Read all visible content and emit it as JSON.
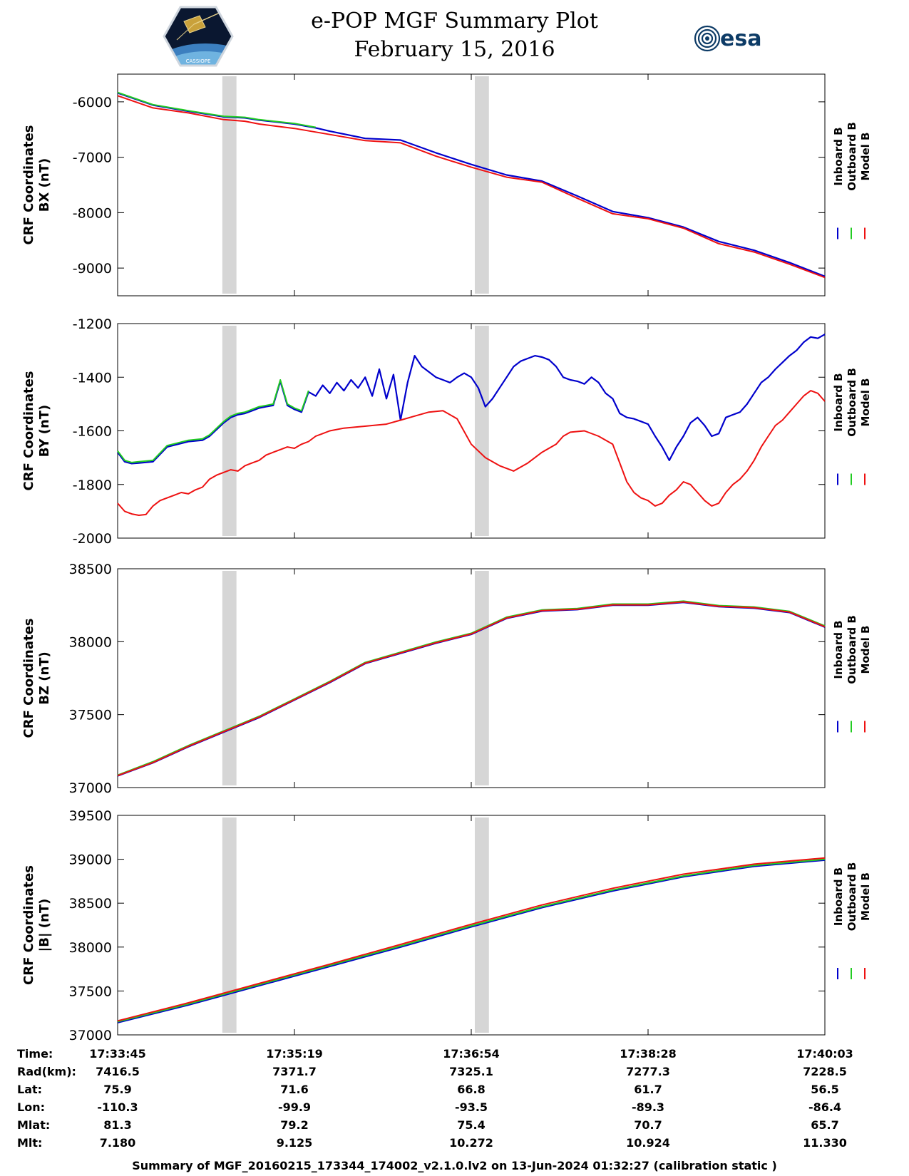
{
  "header": {
    "title": "e-POP MGF Summary Plot",
    "date": "February 15, 2016",
    "esa_logo_text": "esa",
    "cassiope_logo_text": "CASSIOPE"
  },
  "colors": {
    "inboard": "#0000cc",
    "outboard": "#22cc22",
    "model": "#ee1111",
    "shade": "#d6d6d6"
  },
  "legend": [
    "Inboard B",
    "Outboard B",
    "Model B"
  ],
  "chart_data": [
    {
      "type": "line",
      "ylabel_line1": "CRF Coordinates",
      "ylabel_line2": "BX (nT)",
      "ylim": [
        -9500,
        -5500
      ],
      "yticks": [
        -6000,
        -7000,
        -8000,
        -9000
      ],
      "xlim": [
        0,
        100
      ],
      "shaded_x": [
        [
          14.8,
          16.8
        ],
        [
          50.5,
          52.5
        ]
      ],
      "series": [
        {
          "name": "Inboard B",
          "x": [
            0,
            5,
            10,
            15,
            18,
            20,
            25,
            28,
            30,
            35,
            40,
            45,
            50,
            55,
            60,
            65,
            70,
            75,
            80,
            85,
            90,
            95,
            100
          ],
          "y": [
            -5840,
            -6060,
            -6170,
            -6270,
            -6290,
            -6330,
            -6400,
            -6470,
            -6530,
            -6660,
            -6690,
            -6920,
            -7130,
            -7320,
            -7430,
            -7700,
            -7980,
            -8090,
            -8260,
            -8520,
            -8680,
            -8900,
            -9150
          ]
        },
        {
          "name": "Outboard B",
          "x": [
            0,
            5,
            10,
            15,
            18,
            20,
            25,
            28
          ],
          "y": [
            -5830,
            -6050,
            -6160,
            -6260,
            -6280,
            -6320,
            -6390,
            -6460
          ]
        },
        {
          "name": "Model B",
          "x": [
            0,
            5,
            10,
            15,
            18,
            20,
            25,
            30,
            35,
            40,
            45,
            50,
            55,
            60,
            65,
            70,
            75,
            80,
            85,
            90,
            95,
            100
          ],
          "y": [
            -5890,
            -6110,
            -6200,
            -6320,
            -6350,
            -6400,
            -6480,
            -6590,
            -6700,
            -6740,
            -6980,
            -7180,
            -7360,
            -7450,
            -7740,
            -8020,
            -8110,
            -8280,
            -8560,
            -8710,
            -8930,
            -9170
          ]
        }
      ]
    },
    {
      "type": "line",
      "ylabel_line1": "CRF Coordinates",
      "ylabel_line2": "BY (nT)",
      "ylim": [
        -2000,
        -1200
      ],
      "yticks": [
        -1200,
        -1400,
        -1600,
        -1800,
        -2000
      ],
      "xlim": [
        0,
        100
      ],
      "shaded_x": [
        [
          14.8,
          16.8
        ],
        [
          50.5,
          52.5
        ]
      ],
      "series": [
        {
          "name": "Inboard B",
          "x": [
            0,
            1,
            2,
            3,
            5,
            7,
            10,
            12,
            13,
            15,
            16,
            17,
            18,
            19,
            20,
            21,
            22,
            23,
            24,
            25,
            26,
            27,
            28,
            29,
            30,
            31,
            32,
            33,
            34,
            35,
            36,
            37,
            38,
            39,
            40,
            41,
            42,
            43,
            44,
            45,
            46,
            47,
            48,
            49,
            50,
            51,
            52,
            53,
            54,
            55,
            56,
            57,
            58,
            59,
            60,
            61,
            62,
            63,
            64,
            65,
            66,
            67,
            68,
            69,
            70,
            71,
            72,
            73,
            74,
            75,
            76,
            77,
            78,
            79,
            80,
            81,
            82,
            83,
            84,
            85,
            86,
            87,
            88,
            89,
            90,
            91,
            92,
            93,
            94,
            95,
            96,
            97,
            98,
            99,
            100
          ],
          "y": [
            -1680,
            -1715,
            -1722,
            -1720,
            -1715,
            -1660,
            -1640,
            -1635,
            -1620,
            -1570,
            -1550,
            -1540,
            -1535,
            -1525,
            -1515,
            -1510,
            -1505,
            -1415,
            -1505,
            -1520,
            -1530,
            -1455,
            -1470,
            -1430,
            -1460,
            -1420,
            -1450,
            -1410,
            -1440,
            -1400,
            -1470,
            -1370,
            -1480,
            -1390,
            -1560,
            -1420,
            -1320,
            -1360,
            -1380,
            -1400,
            -1410,
            -1420,
            -1400,
            -1385,
            -1400,
            -1440,
            -1510,
            -1480,
            -1440,
            -1400,
            -1360,
            -1340,
            -1330,
            -1320,
            -1325,
            -1335,
            -1360,
            -1400,
            -1410,
            -1415,
            -1425,
            -1400,
            -1420,
            -1460,
            -1480,
            -1535,
            -1550,
            -1555,
            -1565,
            -1575,
            -1620,
            -1660,
            -1710,
            -1660,
            -1620,
            -1570,
            -1550,
            -1580,
            -1620,
            -1610,
            -1550,
            -1540,
            -1530,
            -1500,
            -1460,
            -1420,
            -1400,
            -1370,
            -1345,
            -1320,
            -1300,
            -1270,
            -1250,
            -1255,
            -1240
          ]
        },
        {
          "name": "Outboard B",
          "x": [
            0,
            1,
            2,
            3,
            5,
            7,
            10,
            12,
            13,
            15,
            16,
            17,
            18,
            19,
            20,
            21,
            22,
            23,
            24,
            25,
            26,
            27
          ],
          "y": [
            -1675,
            -1710,
            -1718,
            -1715,
            -1710,
            -1655,
            -1635,
            -1630,
            -1615,
            -1565,
            -1545,
            -1535,
            -1530,
            -1520,
            -1510,
            -1505,
            -1500,
            -1410,
            -1500,
            -1515,
            -1525,
            -1450
          ]
        },
        {
          "name": "Model B",
          "x": [
            0,
            1,
            2,
            3,
            4,
            5,
            6,
            7,
            8,
            9,
            10,
            11,
            12,
            13,
            14,
            15,
            16,
            17,
            18,
            19,
            20,
            21,
            22,
            23,
            24,
            25,
            26,
            27,
            28,
            29,
            30,
            32,
            34,
            36,
            38,
            40,
            42,
            44,
            46,
            48,
            50,
            52,
            54,
            56,
            58,
            60,
            62,
            63,
            64,
            66,
            68,
            70,
            71,
            72,
            73,
            74,
            75,
            76,
            77,
            78,
            79,
            80,
            81,
            82,
            83,
            84,
            85,
            86,
            87,
            88,
            89,
            90,
            91,
            92,
            93,
            94,
            95,
            96,
            97,
            98,
            99,
            100
          ],
          "y": [
            -1870,
            -1900,
            -1910,
            -1915,
            -1912,
            -1880,
            -1860,
            -1850,
            -1840,
            -1830,
            -1835,
            -1820,
            -1810,
            -1780,
            -1765,
            -1755,
            -1745,
            -1750,
            -1730,
            -1720,
            -1710,
            -1690,
            -1680,
            -1670,
            -1660,
            -1665,
            -1650,
            -1640,
            -1620,
            -1610,
            -1600,
            -1590,
            -1585,
            -1580,
            -1575,
            -1560,
            -1545,
            -1530,
            -1525,
            -1555,
            -1650,
            -1700,
            -1730,
            -1750,
            -1720,
            -1680,
            -1650,
            -1620,
            -1605,
            -1600,
            -1620,
            -1650,
            -1720,
            -1790,
            -1830,
            -1850,
            -1860,
            -1880,
            -1870,
            -1840,
            -1820,
            -1790,
            -1800,
            -1830,
            -1860,
            -1880,
            -1870,
            -1830,
            -1800,
            -1780,
            -1750,
            -1710,
            -1660,
            -1620,
            -1580,
            -1560,
            -1530,
            -1500,
            -1470,
            -1450,
            -1460,
            -1490
          ]
        }
      ]
    },
    {
      "type": "line",
      "ylabel_line1": "CRF Coordinates",
      "ylabel_line2": "BZ (nT)",
      "ylim": [
        37000,
        38500
      ],
      "yticks": [
        37000,
        37500,
        38000,
        38500
      ],
      "xlim": [
        0,
        100
      ],
      "shaded_x": [
        [
          14.8,
          16.8
        ],
        [
          50.5,
          52.5
        ]
      ],
      "series": [
        {
          "name": "Inboard B",
          "x": [
            0,
            5,
            10,
            15,
            20,
            25,
            30,
            35,
            40,
            45,
            50,
            55,
            60,
            65,
            70,
            75,
            80,
            85,
            90,
            95,
            100
          ],
          "y": [
            37080,
            37170,
            37280,
            37380,
            37480,
            37600,
            37720,
            37850,
            37920,
            37990,
            38050,
            38160,
            38210,
            38220,
            38250,
            38250,
            38270,
            38240,
            38230,
            38200,
            38100
          ]
        },
        {
          "name": "Outboard B",
          "x": [
            0,
            5,
            10,
            15,
            20,
            25,
            30,
            35,
            40,
            45,
            50,
            55,
            60,
            65,
            70,
            75,
            80,
            85,
            90,
            95,
            100
          ],
          "y": [
            37085,
            37178,
            37288,
            37388,
            37488,
            37608,
            37728,
            37858,
            37928,
            37998,
            38058,
            38168,
            38218,
            38228,
            38258,
            38258,
            38278,
            38248,
            38238,
            38208,
            38108
          ]
        },
        {
          "name": "Model B",
          "x": [
            0,
            5,
            10,
            15,
            20,
            25,
            30,
            35,
            40,
            45,
            50,
            55,
            60,
            65,
            70,
            75,
            80,
            85,
            90,
            95,
            100
          ],
          "y": [
            37082,
            37172,
            37283,
            37383,
            37483,
            37603,
            37723,
            37853,
            37923,
            37993,
            38053,
            38163,
            38213,
            38223,
            38253,
            38253,
            38273,
            38243,
            38233,
            38203,
            38103
          ]
        }
      ]
    },
    {
      "type": "line",
      "ylabel_line1": "CRF Coordinates",
      "ylabel_line2": "|B| (nT)",
      "ylim": [
        37000,
        39500
      ],
      "yticks": [
        37000,
        37500,
        38000,
        38500,
        39000,
        39500
      ],
      "xlim": [
        0,
        100
      ],
      "shaded_x": [
        [
          14.8,
          16.8
        ],
        [
          50.5,
          52.5
        ]
      ],
      "series": [
        {
          "name": "Inboard B",
          "x": [
            0,
            10,
            20,
            30,
            40,
            50,
            60,
            70,
            80,
            90,
            100
          ],
          "y": [
            37140,
            37340,
            37560,
            37780,
            38000,
            38230,
            38450,
            38640,
            38800,
            38920,
            38990
          ]
        },
        {
          "name": "Outboard B",
          "x": [
            0,
            10,
            20,
            30,
            40,
            50,
            60,
            70,
            80,
            90,
            100
          ],
          "y": [
            37150,
            37352,
            37572,
            37792,
            38012,
            38242,
            38460,
            38650,
            38810,
            38930,
            39000
          ]
        },
        {
          "name": "Model B",
          "x": [
            0,
            10,
            20,
            30,
            40,
            50,
            60,
            70,
            80,
            90,
            100
          ],
          "y": [
            37160,
            37365,
            37585,
            37805,
            38030,
            38260,
            38480,
            38670,
            38830,
            38945,
            39015
          ]
        }
      ]
    }
  ],
  "ephemeris": {
    "row_labels": [
      "Time:",
      "Rad(km):",
      "Lat:",
      "Lon:",
      "Mlat:",
      "Mlt:"
    ],
    "columns": [
      [
        "17:33:45",
        "7416.5",
        "75.9",
        "-110.3",
        "81.3",
        "7.180"
      ],
      [
        "17:35:19",
        "7371.7",
        "71.6",
        "-99.9",
        "79.2",
        "9.125"
      ],
      [
        "17:36:54",
        "7325.1",
        "66.8",
        "-93.5",
        "75.4",
        "10.272"
      ],
      [
        "17:38:28",
        "7277.3",
        "61.7",
        "-89.3",
        "70.7",
        "10.924"
      ],
      [
        "17:40:03",
        "7228.5",
        "56.5",
        "-86.4",
        "65.7",
        "11.330"
      ]
    ]
  },
  "footer": "Summary of MGF_20160215_173344_174002_v2.1.0.lv2 on 13-Jun-2024 01:32:27 (calibration static )"
}
